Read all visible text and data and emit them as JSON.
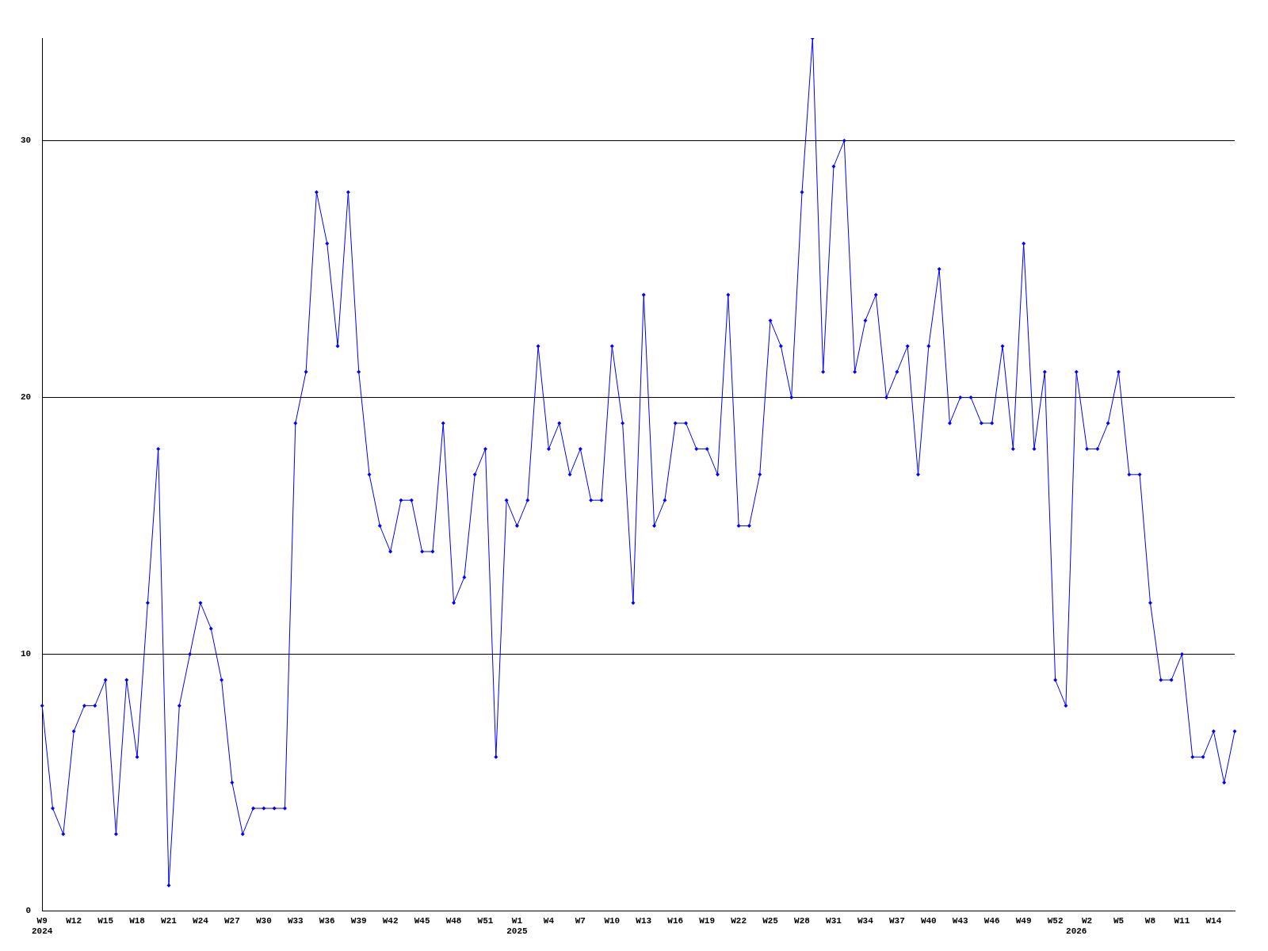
{
  "chart_data": {
    "type": "line",
    "categories": [
      "W9\n2024",
      null,
      null,
      "W12",
      null,
      null,
      "W15",
      null,
      null,
      "W18",
      null,
      null,
      "W21",
      null,
      null,
      "W24",
      null,
      null,
      "W27",
      null,
      null,
      "W30",
      null,
      null,
      "W33",
      null,
      null,
      "W36",
      null,
      null,
      "W39",
      null,
      null,
      "W42",
      null,
      null,
      "W45",
      null,
      null,
      "W48",
      null,
      null,
      "W51",
      null,
      null,
      "W1\n2025",
      null,
      null,
      "W4",
      null,
      null,
      "W7",
      null,
      null,
      "W10",
      null,
      null,
      "W13",
      null,
      null,
      "W16",
      null,
      null,
      "W19",
      null,
      null,
      "W22",
      null,
      null,
      "W25",
      null,
      null,
      "W28",
      null,
      null,
      "W31",
      null,
      null,
      "W34",
      null,
      null,
      "W37",
      null,
      null,
      "W40",
      null,
      null,
      "W43",
      null,
      null,
      "W46",
      null,
      null,
      "W49",
      null,
      null,
      "W52",
      null,
      "\n2026",
      "W2",
      null,
      null,
      "W5",
      null,
      null,
      "W8",
      null,
      null,
      "W11",
      null,
      null,
      "W14",
      null,
      null
    ],
    "series": [
      {
        "color": "#0000ff",
        "values": [
          8,
          4,
          3,
          7,
          8,
          8,
          9,
          3,
          9,
          6,
          12,
          18,
          1,
          8,
          10,
          12,
          11,
          9,
          5,
          3,
          4,
          4,
          4,
          4,
          19,
          21,
          28,
          26,
          22,
          28,
          21,
          17,
          15,
          14,
          16,
          16,
          14,
          14,
          19,
          12,
          13,
          17,
          18,
          6,
          16,
          15,
          16,
          22,
          18,
          19,
          17,
          18,
          16,
          16,
          22,
          19,
          12,
          24,
          15,
          16,
          19,
          19,
          18,
          18,
          17,
          24,
          15,
          15,
          17,
          23,
          22,
          20,
          28,
          34,
          21,
          29,
          30,
          21,
          23,
          24,
          20,
          21,
          22,
          17,
          22,
          25,
          19,
          20,
          20,
          19,
          19,
          22,
          18,
          26,
          18,
          21,
          9,
          8,
          21,
          18,
          18,
          19,
          21,
          17,
          17,
          12,
          9,
          9,
          10,
          6,
          6,
          7,
          5,
          7
        ]
      }
    ],
    "ylim": [
      0,
      34
    ],
    "yticks": [
      0,
      10,
      20,
      30
    ],
    "grid": "y",
    "legend": false,
    "marker": "diamond",
    "line_style": "solid"
  }
}
